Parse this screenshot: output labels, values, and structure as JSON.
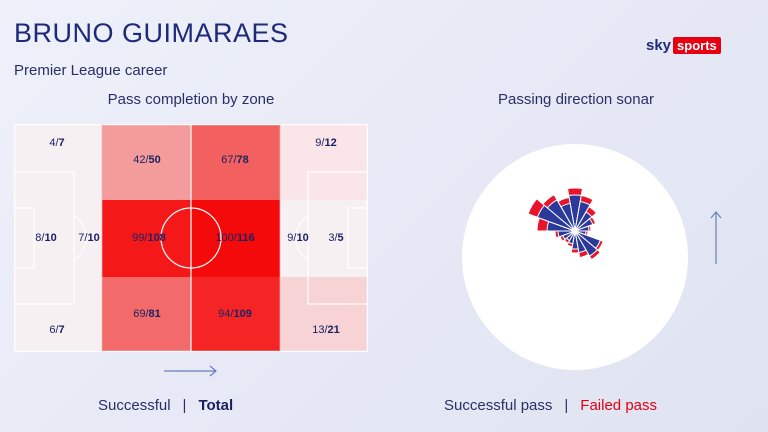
{
  "header": {
    "title": "BRUNO GUIMARAES",
    "subtitle": "Premier League career",
    "logo_sky": "sky",
    "logo_sports": "sports"
  },
  "pitch_map": {
    "heading": "Pass completion by zone",
    "zones": [
      {
        "name": "left-top",
        "successful": "4",
        "total": "7"
      },
      {
        "name": "left-middle-outer",
        "successful": "8",
        "total": "10"
      },
      {
        "name": "left-middle-inner",
        "successful": "7",
        "total": "10"
      },
      {
        "name": "left-bottom",
        "successful": "6",
        "total": "7"
      },
      {
        "name": "centre-left-top",
        "successful": "42",
        "total": "50"
      },
      {
        "name": "centre-left-middle",
        "successful": "99",
        "total": "108"
      },
      {
        "name": "centre-left-bottom",
        "successful": "69",
        "total": "81"
      },
      {
        "name": "centre-right-top",
        "successful": "67",
        "total": "78"
      },
      {
        "name": "centre-right-middle",
        "successful": "100",
        "total": "116"
      },
      {
        "name": "centre-right-bottom",
        "successful": "94",
        "total": "109"
      },
      {
        "name": "right-top",
        "successful": "9",
        "total": "12"
      },
      {
        "name": "right-middle-inner",
        "successful": "9",
        "total": "10"
      },
      {
        "name": "right-middle-outer",
        "successful": "3",
        "total": "5"
      },
      {
        "name": "right-bottom",
        "successful": "13",
        "total": "21"
      }
    ],
    "legend_successful": "Successful",
    "legend_separator": "|",
    "legend_total": "Total"
  },
  "sonar": {
    "heading": "Passing direction sonar",
    "legend_successful": "Successful pass",
    "legend_separator": "|",
    "legend_failed": "Failed pass"
  },
  "colors": {
    "accent_red": "#e60012",
    "navy": "#1e2a78",
    "sonar_blue": "#2b3a9a"
  }
}
